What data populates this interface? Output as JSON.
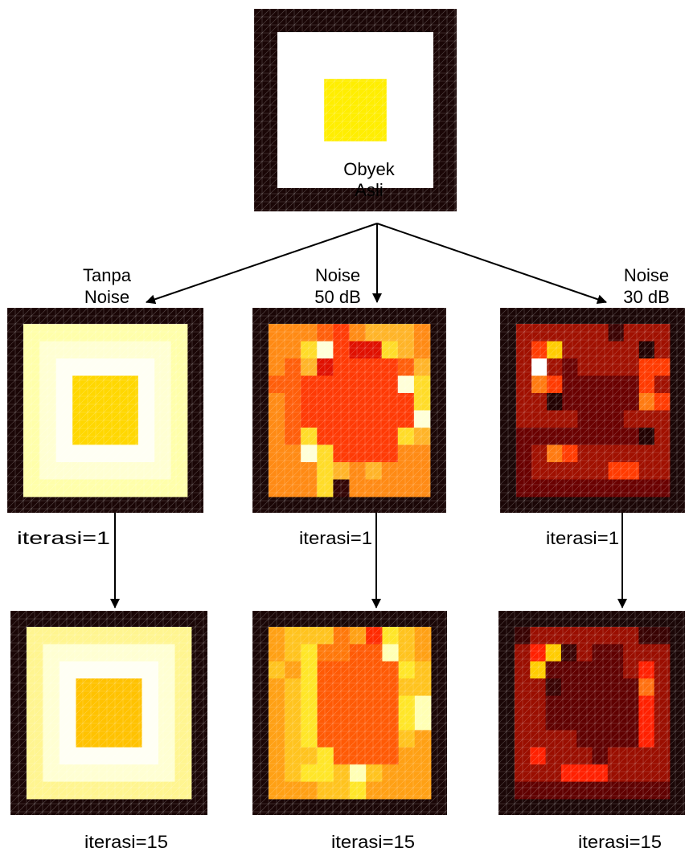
{
  "original_label": [
    "Obyek",
    "Asli"
  ],
  "columns": [
    {
      "heading": [
        "Tanpa",
        "Noise"
      ],
      "label_iter1": "iterasi=1",
      "label_iter15": "iterasi=15"
    },
    {
      "heading": [
        "Noise",
        "50 dB"
      ],
      "label_iter1": "iterasi=1",
      "label_iter15": "iterasi=15"
    },
    {
      "heading": [
        "Noise",
        "30 dB"
      ],
      "label_iter1": "iterasi=1",
      "label_iter15": "iterasi=15"
    }
  ],
  "colors": {
    "frame": "#1a0606",
    "original_background": "#ffffff",
    "original_object": "#ffee00",
    "arrow": "#000000"
  },
  "images": {
    "original": {
      "grid_cells": 10,
      "object_block": {
        "from_cell": 3,
        "to_cell": 6
      }
    },
    "tanpa_iter1": {
      "palette": [
        "#fffff4",
        "#ffffd2",
        "#ffffaa",
        "#fff590",
        "#ffd700",
        "#ffcb00"
      ],
      "rows": [
        "2222222222",
        "2111111112",
        "2100000012",
        "2104444012",
        "2104444012",
        "2104444012",
        "2104444012",
        "2100000012",
        "2111111112",
        "2222222222"
      ]
    },
    "tanpa_iter15": {
      "palette": [
        "#fffff4",
        "#ffffd2",
        "#ffffaa",
        "#fff590",
        "#ffd700",
        "#ffc200"
      ],
      "rows": [
        "3333333333",
        "3111111113",
        "3100000013",
        "3105555013",
        "3105555013",
        "3105555013",
        "3105555013",
        "3100000013",
        "3111111113",
        "3333333333"
      ]
    },
    "n50_iter1": {
      "palette": [
        "#ffffd8",
        "#ffdc28",
        "#ffb428",
        "#ff8a14",
        "#ff5e0a",
        "#ff3a05",
        "#e01000",
        "#320404"
      ],
      "rows": [
        "3334532223",
        "3310566123",
        "3426555542",
        "4455555501",
        "3455555551",
        "3455555550",
        "3415555512",
        "3301555533",
        "3331232333",
        "3331733333"
      ]
    },
    "n50_iter15": {
      "palette": [
        "#ffffb4",
        "#ffe628",
        "#ffc31e",
        "#ffa014",
        "#ff780a",
        "#ff5a05",
        "#ff2a00",
        "#c80c00"
      ],
      "rows": [
        "3222436123",
        "3214455023",
        "2315555512",
        "3215555522",
        "3215555510",
        "3215555510",
        "3215555523",
        "3221555533",
        "3211202333",
        "3332213333"
      ]
    },
    "n30_iter1": {
      "palette": [
        "#ffffff",
        "#ffcc00",
        "#ff3a00",
        "#ff7a10",
        "#a01000",
        "#6a0000",
        "#3a0202",
        "#200000"
      ],
      "rows": [
        "4444446444",
        "4214444474",
        "4045444422",
        "4325555524",
        "4475555532",
        "4444555444",
        "5555555574",
        "5432444444",
        "5444442244",
        "5555555555"
      ]
    },
    "n30_iter15": {
      "palette": [
        "#ffffff",
        "#ffcc00",
        "#ff2000",
        "#ff7010",
        "#9a0e00",
        "#600000",
        "#380202",
        "#1c0000"
      ],
      "rows": [
        "6444444466",
        "4216455444",
        "4155555424",
        "4465555534",
        "4455555524",
        "4455555524",
        "4444555524",
        "4244454444",
        "4442224444",
        "5555555555"
      ]
    }
  }
}
